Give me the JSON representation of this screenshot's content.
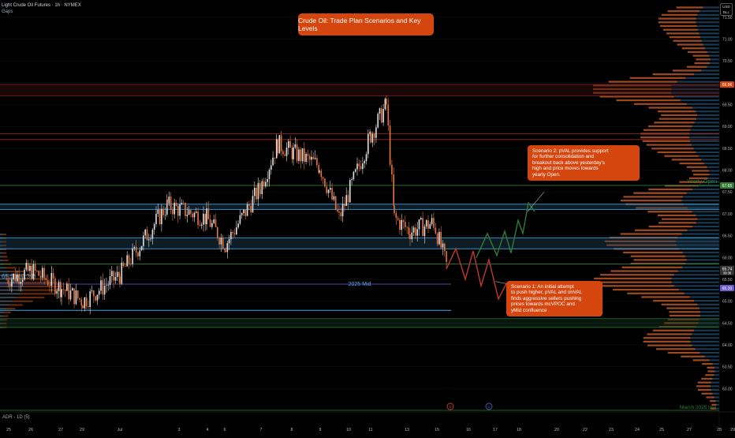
{
  "header": {
    "title": "Light Crude Oil Futures · 1h · NYMEX",
    "subtitle": "Gaps"
  },
  "title_box": "Crude Oil: Trade Plan Scenarios and Key Levels",
  "currency": {
    "line1": "USD",
    "line2": "BLL"
  },
  "indicator_label": "ADR - 1D (5)",
  "annotations": {
    "scenario2": [
      "Scenario 2: pVAL provides support",
      "for further consolidation and",
      "breakout back above yesterday's",
      "high and price moves towards",
      "yearly Open."
    ],
    "scenario1": [
      "Scenario 1: An initial attempt",
      "to push higher, pVAL and onVAL",
      "finds aggressive sellers pushing",
      "prices towards mcVPOC and",
      "yMid confluence"
    ],
    "mid_label": "2025 Mid",
    "yearly_open_label": "Yearly Open",
    "march_label": "March 2025 low",
    "left_level_label": "65.5 (65.39)"
  },
  "price_tags": {
    "upper": "69.96",
    "open": "67.65",
    "last": "65.74",
    "last_sub": "39:36",
    "prev": "65.30"
  },
  "event_markers": [
    "E",
    "D"
  ],
  "colors": {
    "background": "#000000",
    "up": "#e0e0e0",
    "down": "#e8743b",
    "accent_orange": "#d5460e",
    "blue_line": "#4aa3df",
    "green_line": "#2e7d32",
    "red_line": "#b71c1c",
    "profile_orange": "#b94a15",
    "profile_blue": "#1f4e6e"
  },
  "chart_data": {
    "type": "candlestick",
    "symbol": "Light Crude Oil Futures",
    "interval": "1h",
    "ylim": [
      62.5,
      71.75
    ],
    "y_ticks": [
      63.0,
      63.5,
      64.0,
      64.5,
      65.0,
      65.5,
      66.0,
      66.5,
      67.0,
      67.5,
      68.0,
      68.5,
      69.0,
      69.5,
      70.0,
      70.5,
      71.0,
      71.5
    ],
    "y_tick_labels": [
      "63.00",
      "63.50",
      "64.00",
      "64.50",
      "65.00",
      "65.50",
      "66.00",
      "66.50",
      "67.00",
      "67.50",
      "68.00",
      "68.50",
      "69.00",
      "69.50",
      "70.00",
      "70.50",
      "71.00",
      "71.50"
    ],
    "x_tick_labels": [
      "25",
      "26",
      "27",
      "29",
      "Jul",
      "3",
      "4",
      "6",
      "7",
      "8",
      "9",
      "10",
      "11",
      "13",
      "15",
      "16",
      "17",
      "18",
      "20",
      "22",
      "23",
      "24",
      "25",
      "27",
      "28",
      "29"
    ],
    "anchors": [
      {
        "label": "25",
        "value": 65.5
      },
      {
        "label": "26",
        "value": 65.7
      },
      {
        "label": "27",
        "value": 65.3
      },
      {
        "label": "29",
        "value": 65.0
      },
      {
        "label": "Jul",
        "value": 65.6
      },
      {
        "label": "3",
        "value": 67.2
      },
      {
        "label": "4",
        "value": 66.9
      },
      {
        "label": "6",
        "value": 66.3
      },
      {
        "label": "7",
        "value": 67.6
      },
      {
        "label": "8",
        "value": 68.6
      },
      {
        "label": "9",
        "value": 68.4
      },
      {
        "label": "10",
        "value": 68.1
      },
      {
        "label": "11",
        "value": 66.9
      },
      {
        "label": "13",
        "value": 68.8
      },
      {
        "label": "13b",
        "value": 69.5
      },
      {
        "label": "15",
        "value": 66.9
      },
      {
        "label": "15b",
        "value": 66.6
      },
      {
        "label": "16",
        "value": 66.8
      },
      {
        "label": "16b",
        "value": 65.7
      }
    ],
    "levels": [
      {
        "name": "upper-red-1",
        "value": 69.96,
        "color": "red"
      },
      {
        "name": "upper-red-2",
        "value": 69.7,
        "color": "red"
      },
      {
        "name": "red-68.8",
        "value": 68.83,
        "color": "red"
      },
      {
        "name": "red-68.7",
        "value": 68.7,
        "color": "red"
      },
      {
        "name": "yearly-open",
        "value": 67.65,
        "color": "green"
      },
      {
        "name": "blue-67.2",
        "value": 67.22,
        "color": "blue"
      },
      {
        "name": "blue-67.1",
        "value": 67.1,
        "color": "blue"
      },
      {
        "name": "blue-66.4",
        "value": 66.45,
        "color": "blue"
      },
      {
        "name": "blue-66.2",
        "value": 66.2,
        "color": "blue"
      },
      {
        "name": "green-65.8",
        "value": 65.85,
        "color": "green"
      },
      {
        "name": "mid-2025",
        "value": 65.39,
        "color": "purple"
      },
      {
        "name": "blue-64.8",
        "value": 64.79,
        "color": "blue"
      },
      {
        "name": "green-64.6",
        "value": 64.6,
        "color": "green"
      },
      {
        "name": "green-64.4",
        "value": 64.4,
        "color": "green"
      },
      {
        "name": "march-low",
        "value": 62.5,
        "color": "green"
      }
    ],
    "scenario_paths": {
      "scenario1_red": [
        65.74,
        66.2,
        65.5,
        66.15,
        65.35,
        65.95,
        65.05,
        65.4,
        65.25
      ],
      "scenario2_green": [
        66.0,
        66.55,
        66.05,
        66.6,
        66.1,
        66.85,
        66.55,
        67.25,
        67.05
      ]
    }
  }
}
